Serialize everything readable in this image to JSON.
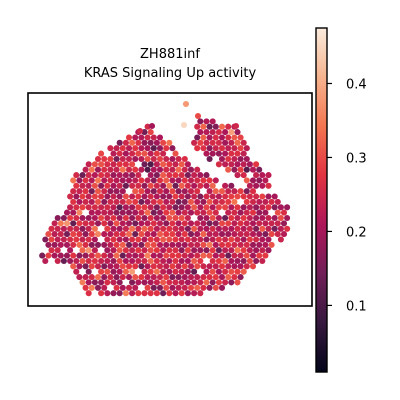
{
  "chart_data": {
    "type": "scatter",
    "title": "ZH881inf",
    "subtitle": "KRAS Signaling Up activity",
    "xlabel": "",
    "ylabel": "",
    "colorbar": {
      "range": [
        0.01,
        0.475
      ],
      "ticks": [
        0.1,
        0.2,
        0.3,
        0.4
      ],
      "tick_labels": [
        "0.1",
        "0.2",
        "0.3",
        "0.4"
      ],
      "colormap": "rocket",
      "colormap_stops": [
        "#03051a",
        "#36193e",
        "#701f57",
        "#ad1759",
        "#e13342",
        "#f37651",
        "#f6b48f",
        "#faebdd"
      ]
    },
    "grid": false,
    "axes_ticks": false,
    "spots": {
      "note_shape": "spatial transcriptomics spots",
      "mean_value": 0.24,
      "spread": 0.07
    }
  }
}
